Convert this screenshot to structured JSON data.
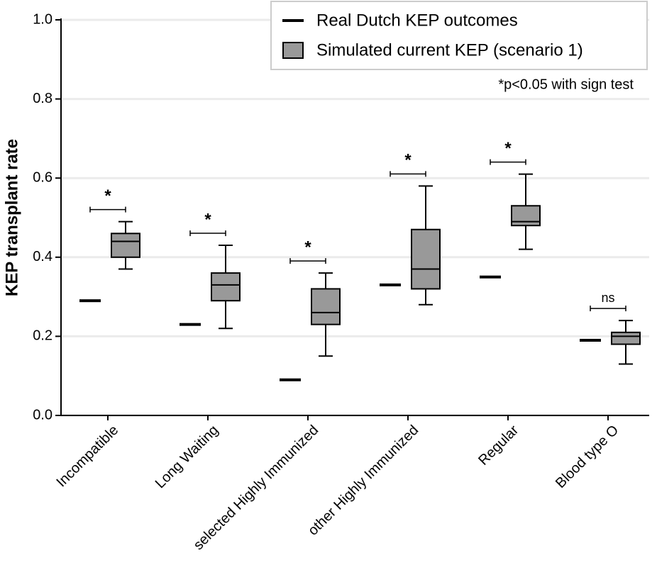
{
  "chart_data": {
    "type": "box",
    "y_label": "KEP transplant rate",
    "annotation": "*p<0.05 with sign test",
    "categories": [
      "Incompatible",
      "Long Waiting",
      "selected Highly Immunized",
      "other Highly Immunized",
      "Regular",
      "Blood type O"
    ],
    "series": [
      {
        "name": "Real Dutch KEP outcomes",
        "color": "#000000",
        "values": [
          0.29,
          0.23,
          0.09,
          0.33,
          0.35,
          0.19
        ]
      },
      {
        "name": "Simulated current KEP (scenario 1)",
        "color": "#999999",
        "min": [
          0.37,
          0.22,
          0.15,
          0.28,
          0.42,
          0.13
        ],
        "q1": [
          0.4,
          0.29,
          0.23,
          0.32,
          0.48,
          0.18
        ],
        "median": [
          0.44,
          0.33,
          0.26,
          0.37,
          0.49,
          0.2
        ],
        "q3": [
          0.46,
          0.36,
          0.32,
          0.47,
          0.53,
          0.21
        ],
        "max": [
          0.49,
          0.43,
          0.36,
          0.58,
          0.61,
          0.24
        ]
      }
    ],
    "significance": [
      "*",
      "*",
      "*",
      "*",
      "*",
      "ns"
    ],
    "ylim": [
      0,
      1.0
    ],
    "yticks": [
      {
        "value": 0,
        "label": "0.0"
      },
      0.2,
      0.4,
      0.6,
      0.8,
      {
        "value": 1.0,
        "label": "1.0"
      }
    ],
    "grid": true,
    "legend": "top-right"
  }
}
